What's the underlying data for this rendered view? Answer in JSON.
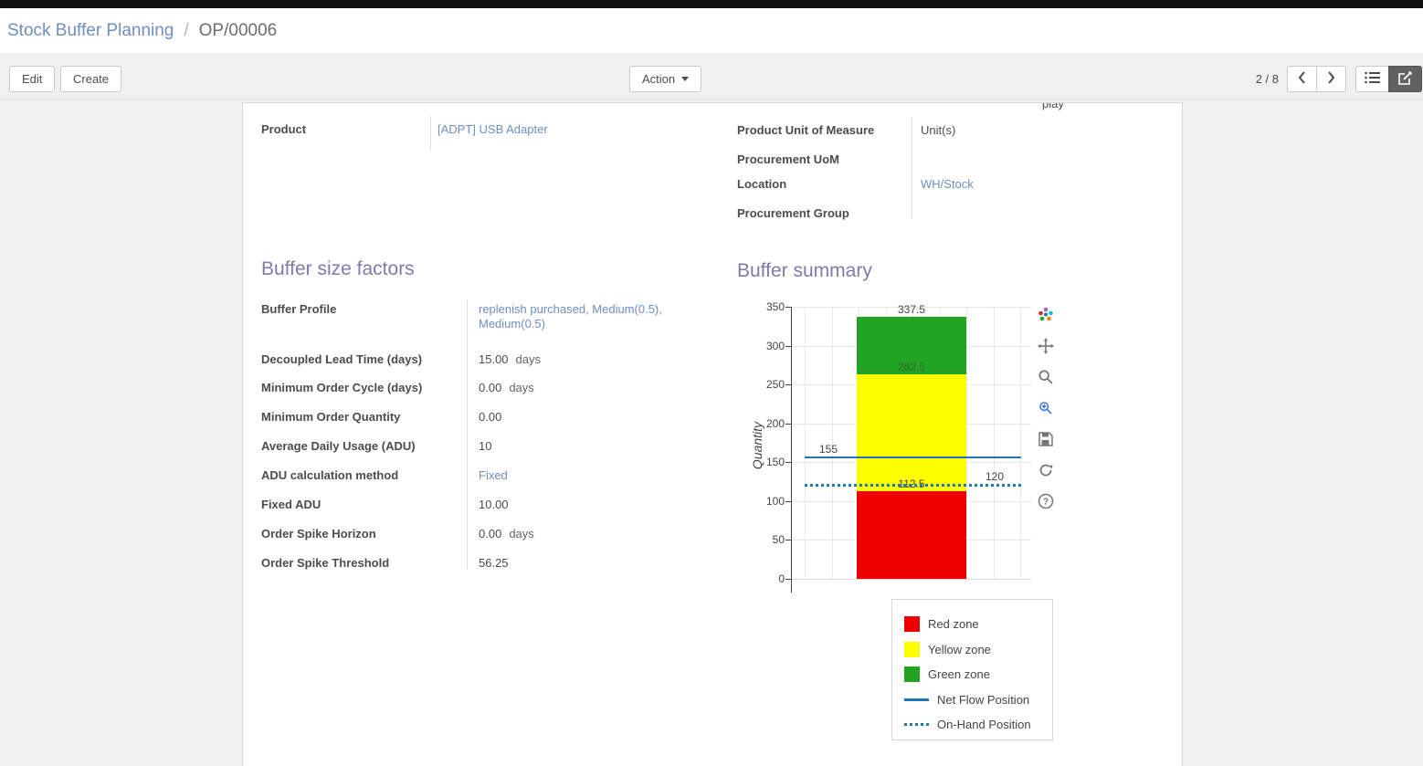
{
  "colors": {
    "accent": "#7c7bad",
    "link": "#6f8fc0",
    "topbar": "#111111",
    "panel-bg": "#f0f0f0",
    "content-bg": "#f0f0f0",
    "text": "#4c4c4c",
    "active-view-bg": "#616161"
  },
  "breadcrumb": {
    "parent": "Stock Buffer Planning",
    "separator": "/",
    "current": "OP/00006"
  },
  "toolbar": {
    "edit": "Edit",
    "create": "Create",
    "action": "Action",
    "pager": "2 / 8"
  },
  "sheet": {
    "clipped_text": "play",
    "fields_left": [
      {
        "label": "Product",
        "value": "[ADPT] USB Adapter",
        "link": true
      }
    ],
    "fields_right": [
      {
        "label": "Product Unit of Measure",
        "value": "Unit(s)",
        "link": false
      },
      {
        "label": "Procurement UoM",
        "value": "",
        "link": false
      },
      {
        "label": "Location",
        "value": "WH/Stock",
        "link": true
      },
      {
        "label": "Procurement Group",
        "value": "",
        "link": false
      }
    ],
    "buffer_factors": {
      "title": "Buffer size factors",
      "rows": [
        {
          "label": "Buffer Profile",
          "value": "replenish purchased, Medium(0.5), Medium(0.5)",
          "link": true
        },
        {
          "label": "Decoupled Lead Time (days)",
          "value": "15.00",
          "unit": "days"
        },
        {
          "label": "Minimum Order Cycle (days)",
          "value": "0.00",
          "unit": "days"
        },
        {
          "label": "Minimum Order Quantity",
          "value": "0.00"
        },
        {
          "label": "Average Daily Usage (ADU)",
          "value": "10"
        },
        {
          "label": "ADU calculation method",
          "value": "Fixed",
          "link": true
        },
        {
          "label": "Fixed ADU",
          "value": "10.00"
        },
        {
          "label": "Order Spike Horizon",
          "value": "0.00",
          "unit": "days"
        },
        {
          "label": "Order Spike Threshold",
          "value": "56.25"
        }
      ]
    },
    "buffer_summary": {
      "title": "Buffer summary"
    }
  },
  "chart_data": {
    "type": "bar",
    "title": "",
    "ylabel": "Quantity",
    "ylim": [
      0,
      350
    ],
    "yticks": [
      0,
      50,
      100,
      150,
      200,
      250,
      300,
      350
    ],
    "grid": true,
    "zones": [
      {
        "name": "Red zone",
        "from": 0,
        "to": 112.5,
        "color": "#ee0000",
        "label": "112.5",
        "label_color": "#444444"
      },
      {
        "name": "Yellow zone",
        "from": 112.5,
        "to": 262.5,
        "color": "#ffff00",
        "label": "262.5",
        "label_color": "#35682d"
      },
      {
        "name": "Green zone",
        "from": 262.5,
        "to": 337.5,
        "color": "#22a322",
        "label": "337.5",
        "label_color": "#444444"
      }
    ],
    "lines": [
      {
        "name": "Net Flow Position",
        "value": 155,
        "style": "solid",
        "color": "#1f77b4",
        "label": "155",
        "label_side": "left"
      },
      {
        "name": "On-Hand Position",
        "value": 120,
        "style": "dotted",
        "color": "#1f77b4",
        "label": "120",
        "label_side": "right"
      }
    ],
    "legend": [
      "Red zone",
      "Yellow zone",
      "Green zone",
      "Net Flow Position",
      "On-Hand Position"
    ],
    "legend_position": "bottom-right",
    "toolbar_icons": [
      "plotly-logo",
      "pan",
      "zoom",
      "zoom-in",
      "save",
      "reset",
      "help"
    ]
  }
}
